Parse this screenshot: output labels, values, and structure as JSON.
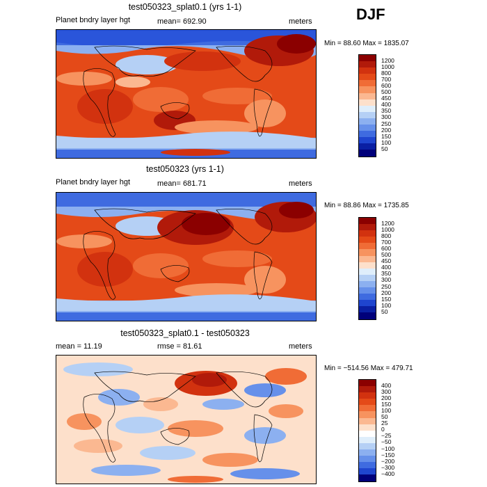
{
  "season": "DJF",
  "panels": [
    {
      "title": "test050323_splat0.1 (yrs 1-1)",
      "left_label": "Planet bndry layer hgt",
      "mean_label": "mean= 692.90",
      "units": "meters",
      "stats": "Min =   88.60 Max = 1835.07",
      "colorbar_labels": [
        "1200",
        "1000",
        "800",
        "700",
        "600",
        "500",
        "450",
        "400",
        "350",
        "300",
        "250",
        "200",
        "150",
        "100",
        "50"
      ]
    },
    {
      "title": "test050323 (yrs 1-1)",
      "left_label": "Planet bndry layer hgt",
      "mean_label": "mean= 681.71",
      "units": "meters",
      "stats": "Min =   88.86 Max = 1735.85",
      "colorbar_labels": [
        "1200",
        "1000",
        "800",
        "700",
        "600",
        "500",
        "450",
        "400",
        "350",
        "300",
        "250",
        "200",
        "150",
        "100",
        "50"
      ]
    },
    {
      "title": "test050323_splat0.1 - test050323",
      "left_label": "mean =   11.19",
      "mean_label": "rmse =   81.61",
      "units": "meters",
      "stats": "Min = −514.56 Max = 479.71",
      "colorbar_labels": [
        "400",
        "300",
        "200",
        "150",
        "100",
        "50",
        "25",
        "0",
        "−25",
        "−50",
        "−100",
        "−150",
        "−200",
        "−300",
        "−400"
      ]
    }
  ],
  "colors": {
    "abs_scale": [
      "#8b0000",
      "#b11a0a",
      "#d2320f",
      "#e44a18",
      "#f06c36",
      "#f7935f",
      "#fbb891",
      "#fde0cb",
      "#dfeefb",
      "#b5d0f5",
      "#8cb0f0",
      "#6690ea",
      "#3f6be0",
      "#1f45cf",
      "#0a1fa3",
      "#00007a"
    ],
    "diff_scale": [
      "#8b0000",
      "#b11a0a",
      "#d2320f",
      "#e44a18",
      "#f06c36",
      "#f7935f",
      "#fbb891",
      "#fde0cb",
      "#ffffff",
      "#dfeefb",
      "#b5d0f5",
      "#8cb0f0",
      "#6690ea",
      "#3f6be0",
      "#1f45cf",
      "#00007a"
    ]
  }
}
